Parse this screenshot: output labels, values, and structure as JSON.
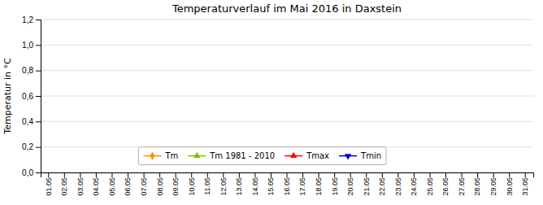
{
  "chart_data": {
    "type": "line",
    "title": "Temperaturverlauf im Mai 2016 in Daxstein",
    "y_label": "Temperatur in °C",
    "categories": [
      "01.05",
      "02.05",
      "03.05",
      "04.05",
      "05.05",
      "06.05",
      "07.05",
      "08.05",
      "09.05",
      "10.05",
      "11.05",
      "12.05",
      "13.05",
      "14.05",
      "15.05",
      "16.05",
      "17.05",
      "18.05",
      "19.05",
      "20.05",
      "21.05",
      "22.05",
      "23.05",
      "24.05",
      "25.05",
      "26.05",
      "27.05",
      "28.05",
      "29.05",
      "30.05",
      "31.05"
    ],
    "series": [
      {
        "name": "Tm",
        "color": "#ff8c00",
        "marker": "diamond",
        "values": [
          null,
          null,
          null,
          null,
          null,
          null,
          null,
          null,
          null,
          null,
          null,
          null,
          null,
          null,
          null,
          null,
          null,
          null,
          null,
          null,
          null,
          null,
          null,
          null,
          null,
          null,
          null,
          null,
          null,
          null,
          null
        ]
      },
      {
        "name": "Tm 1981 - 2010",
        "color": "#80c000",
        "marker": "triangle-up",
        "values": [
          null,
          null,
          null,
          null,
          null,
          null,
          null,
          null,
          null,
          null,
          null,
          null,
          null,
          null,
          null,
          null,
          null,
          null,
          null,
          null,
          null,
          null,
          null,
          null,
          null,
          null,
          null,
          null,
          null,
          null,
          null
        ]
      },
      {
        "name": "Tmax",
        "color": "#ff0000",
        "marker": "triangle-up",
        "values": [
          null,
          null,
          null,
          null,
          null,
          null,
          null,
          null,
          null,
          null,
          null,
          null,
          null,
          null,
          null,
          null,
          null,
          null,
          null,
          null,
          null,
          null,
          null,
          null,
          null,
          null,
          null,
          null,
          null,
          null,
          null
        ]
      },
      {
        "name": "Tmin",
        "color": "#0000cc",
        "marker": "triangle-down",
        "values": [
          null,
          null,
          null,
          null,
          null,
          null,
          null,
          null,
          null,
          null,
          null,
          null,
          null,
          null,
          null,
          null,
          null,
          null,
          null,
          null,
          null,
          null,
          null,
          null,
          null,
          null,
          null,
          null,
          null,
          null,
          null
        ]
      }
    ],
    "ylim": [
      0.0,
      1.2
    ],
    "yticks": [
      {
        "value": 0.0,
        "label": "0,0"
      },
      {
        "value": 0.2,
        "label": "0,2"
      },
      {
        "value": 0.4,
        "label": "0,4"
      },
      {
        "value": 0.6,
        "label": "0,6"
      },
      {
        "value": 0.8,
        "label": "0,8"
      },
      {
        "value": 1.0,
        "label": "1,0"
      },
      {
        "value": 1.2,
        "label": "1,2"
      }
    ],
    "grid": true,
    "legend": "bottom"
  }
}
